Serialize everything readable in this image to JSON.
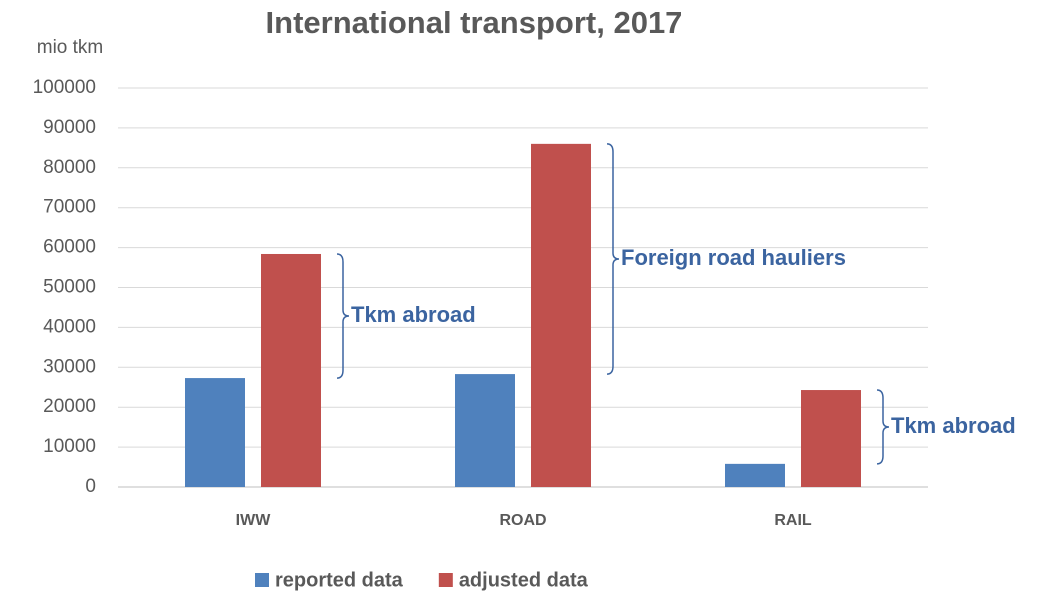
{
  "chart_data": {
    "type": "bar",
    "title": "International transport, 2017",
    "y_label": "mio tkm",
    "categories": [
      "IWW",
      "ROAD",
      "RAIL"
    ],
    "series": [
      {
        "name": "reported data",
        "color": "#4f81bd",
        "values": [
          27300,
          28300,
          5800
        ]
      },
      {
        "name": "adjusted data",
        "color": "#c0504d",
        "values": [
          58400,
          86000,
          24300
        ]
      }
    ],
    "annotations": [
      "Tkm abroad",
      "Foreign road hauliers",
      "Tkm abroad"
    ],
    "annotation_color": "#3b64a0",
    "ylim": [
      0,
      100000
    ],
    "yticks": [
      0,
      10000,
      20000,
      30000,
      40000,
      50000,
      60000,
      70000,
      80000,
      90000,
      100000
    ],
    "grid": true
  }
}
